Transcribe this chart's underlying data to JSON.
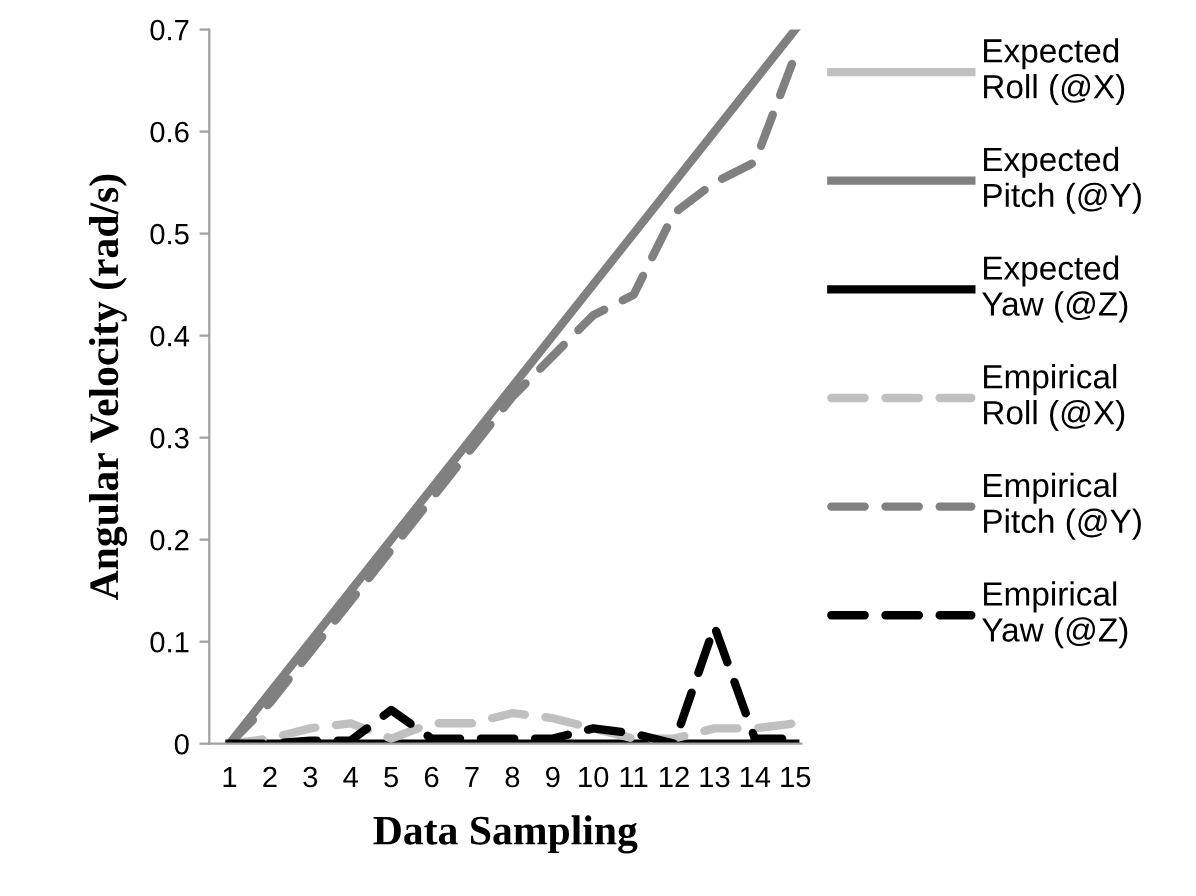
{
  "chart_data": {
    "type": "line",
    "xlabel": "Data Sampling",
    "ylabel": "Angular Velocity (rad/s)",
    "categories": [
      "1",
      "2",
      "3",
      "4",
      "5",
      "6",
      "7",
      "8",
      "9",
      "10",
      "11",
      "12",
      "13",
      "14",
      "15"
    ],
    "ylim": [
      0,
      0.7
    ],
    "yticks": [
      0,
      0.1,
      0.2,
      0.3,
      0.4,
      0.5,
      0.6,
      0.7
    ],
    "grid": false,
    "legend": "right",
    "marker": "none",
    "series": [
      {
        "name": "Expected Roll (@X)",
        "color": "#c0c0c0",
        "line_style": "solid",
        "values": [
          null,
          null,
          null,
          null,
          null,
          null,
          null,
          null,
          null,
          null,
          null,
          null,
          null,
          null,
          null
        ]
      },
      {
        "name": "Expected Pitch (@Y)",
        "color": "#808080",
        "line_style": "solid",
        "values": [
          0,
          0.05,
          0.1,
          0.15,
          0.2,
          0.25,
          0.3,
          0.35,
          0.4,
          0.45,
          0.5,
          0.55,
          0.6,
          0.65,
          0.7
        ]
      },
      {
        "name": "Expected Yaw (@Z)",
        "color": "#000000",
        "line_style": "solid",
        "values": [
          0,
          0,
          0,
          0,
          0,
          0,
          0,
          0,
          0,
          0,
          0,
          0,
          0,
          0,
          0
        ]
      },
      {
        "name": "Empirical Roll (@X)",
        "color": "#c0c0c0",
        "line_style": "dashed",
        "values": [
          0,
          0.005,
          0.015,
          0.02,
          0.005,
          0.02,
          0.02,
          0.03,
          0.025,
          0.015,
          0.005,
          0.005,
          0.015,
          0.015,
          0.02
        ]
      },
      {
        "name": "Empirical Pitch (@Y)",
        "color": "#808080",
        "line_style": "dashed",
        "values": [
          0,
          0.04,
          0.09,
          0.14,
          0.19,
          0.24,
          0.29,
          0.34,
          0.38,
          0.42,
          0.44,
          0.52,
          0.55,
          0.57,
          0.675
        ]
      },
      {
        "name": "Empirical Yaw (@Z)",
        "color": "#000000",
        "line_style": "dashed",
        "values": [
          0,
          0,
          0.003,
          0.003,
          0.033,
          0.005,
          0.005,
          0.005,
          0.005,
          0.015,
          0.01,
          0,
          0.115,
          0.005,
          0.005
        ]
      }
    ]
  }
}
